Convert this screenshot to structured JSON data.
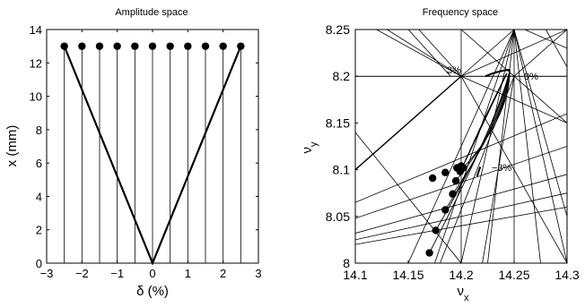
{
  "chart_data": [
    {
      "type": "scatter",
      "title": "Amplitude space",
      "xlabel": "δ (%)",
      "ylabel": "x (mm)",
      "xlim": [
        -3,
        3
      ],
      "ylim": [
        0,
        14
      ],
      "xticks": [
        "−3",
        "−2",
        "−1",
        "0",
        "1",
        "2",
        "3"
      ],
      "yticks": [
        "0",
        "2",
        "4",
        "6",
        "8",
        "10",
        "12",
        "14"
      ],
      "grid": false,
      "legend": "none",
      "points": [
        {
          "x": -2.5,
          "y": 13
        },
        {
          "x": -2.0,
          "y": 13
        },
        {
          "x": -1.5,
          "y": 13
        },
        {
          "x": -1.0,
          "y": 13
        },
        {
          "x": -0.5,
          "y": 13
        },
        {
          "x": 0.0,
          "y": 13
        },
        {
          "x": 0.5,
          "y": 13
        },
        {
          "x": 1.0,
          "y": 13
        },
        {
          "x": 1.5,
          "y": 13
        },
        {
          "x": 2.0,
          "y": 13
        },
        {
          "x": 2.5,
          "y": 13
        }
      ],
      "envelope": [
        {
          "x": -2.5,
          "y": 13
        },
        {
          "x": 0,
          "y": 0
        },
        {
          "x": 2.5,
          "y": 13
        }
      ]
    },
    {
      "type": "scatter",
      "title": "Frequency space",
      "xlabel": "ν",
      "xlabel_sub": "x",
      "ylabel": "ν",
      "ylabel_sub": "y",
      "xlim": [
        14.1,
        14.3
      ],
      "ylim": [
        8.0,
        8.25
      ],
      "xticks": [
        "14.1",
        "14.15",
        "14.2",
        "14.25",
        "14.3"
      ],
      "yticks": [
        "8",
        "8.05",
        "8.1",
        "8.15",
        "8.2",
        "8.25"
      ],
      "grid": false,
      "legend": "none",
      "annotations": [
        "3%",
        "0%",
        "−3%"
      ],
      "points": [
        {
          "x": 14.17,
          "y": 8.011
        },
        {
          "x": 14.176,
          "y": 8.035
        },
        {
          "x": 14.185,
          "y": 8.057
        },
        {
          "x": 14.192,
          "y": 8.074
        },
        {
          "x": 14.195,
          "y": 8.088
        },
        {
          "x": 14.173,
          "y": 8.091
        },
        {
          "x": 14.185,
          "y": 8.097
        },
        {
          "x": 14.196,
          "y": 8.102
        },
        {
          "x": 14.2,
          "y": 8.104
        },
        {
          "x": 14.202,
          "y": 8.102
        },
        {
          "x": 14.199,
          "y": 8.098
        }
      ]
    }
  ]
}
